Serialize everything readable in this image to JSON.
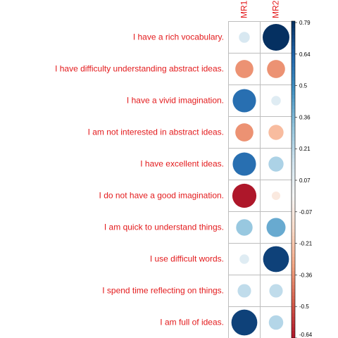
{
  "chart_data": {
    "type": "heatmap",
    "title": "",
    "columns": [
      "MR1",
      "MR2"
    ],
    "rows": [
      "I have a rich vocabulary.",
      "I have difficulty understanding abstract ideas.",
      "I have a vivid imagination.",
      "I am not interested in abstract ideas.",
      "I have excellent ideas.",
      "I do not have a good imagination.",
      "I am quick to understand things.",
      "I use difficult words.",
      "I spend time reflecting on things.",
      "I am full of ideas."
    ],
    "values": [
      [
        0.13,
        0.79
      ],
      [
        -0.36,
        -0.36
      ],
      [
        0.6,
        0.1
      ],
      [
        -0.36,
        -0.25
      ],
      [
        0.6,
        0.25
      ],
      [
        -0.64,
        -0.08
      ],
      [
        0.3,
        0.4
      ],
      [
        0.1,
        0.74
      ],
      [
        0.2,
        0.2
      ],
      [
        0.74,
        0.23
      ]
    ],
    "colorbar": {
      "ticks": [
        "0.79",
        "0.64",
        "0.5",
        "0.36",
        "0.21",
        "0.07",
        "-0.07",
        "-0.21",
        "-0.36",
        "-0.5",
        "-0.64"
      ],
      "range": [
        -0.64,
        0.79
      ]
    },
    "colors": {
      "negative_end": "#67001f",
      "mid": "#f7f7f7",
      "positive_end": "#053061",
      "grid": "#bdbdbd",
      "label": "#e31a1c"
    }
  }
}
